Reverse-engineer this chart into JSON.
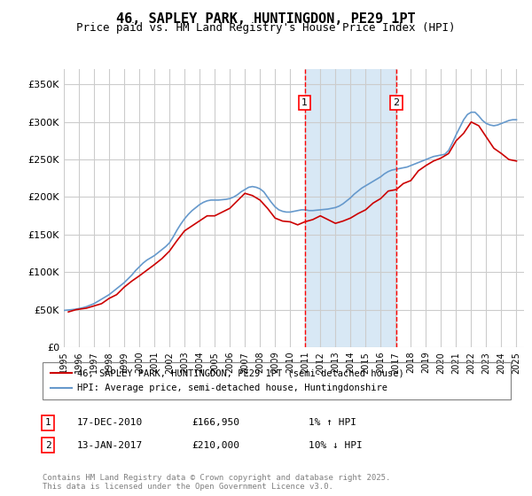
{
  "title": "46, SAPLEY PARK, HUNTINGDON, PE29 1PT",
  "subtitle": "Price paid vs. HM Land Registry's House Price Index (HPI)",
  "ylabel": "",
  "ylim": [
    0,
    370000
  ],
  "yticks": [
    0,
    50000,
    100000,
    150000,
    200000,
    250000,
    300000,
    350000
  ],
  "ytick_labels": [
    "£0",
    "£50K",
    "£100K",
    "£150K",
    "£200K",
    "£250K",
    "£300K",
    "£350K"
  ],
  "xlim_start": 1995.0,
  "xlim_end": 2025.5,
  "xticks": [
    1995,
    1996,
    1997,
    1998,
    1999,
    2000,
    2001,
    2002,
    2003,
    2004,
    2005,
    2006,
    2007,
    2008,
    2009,
    2010,
    2011,
    2012,
    2013,
    2014,
    2015,
    2016,
    2017,
    2018,
    2019,
    2020,
    2021,
    2022,
    2023,
    2024,
    2025
  ],
  "sale1_x": 2010.96,
  "sale1_y": 166950,
  "sale1_label": "1",
  "sale1_date": "17-DEC-2010",
  "sale1_price": "£166,950",
  "sale1_hpi": "1% ↑ HPI",
  "sale2_x": 2017.04,
  "sale2_y": 210000,
  "sale2_label": "2",
  "sale2_date": "13-JAN-2017",
  "sale2_price": "£210,000",
  "sale2_hpi": "10% ↓ HPI",
  "line_color_red": "#cc0000",
  "line_color_blue": "#6699cc",
  "shaded_color": "#d8e8f5",
  "grid_color": "#cccccc",
  "bg_color": "#ffffff",
  "legend1": "46, SAPLEY PARK, HUNTINGDON, PE29 1PT (semi-detached house)",
  "legend2": "HPI: Average price, semi-detached house, Huntingdonshire",
  "footer": "Contains HM Land Registry data © Crown copyright and database right 2025.\nThis data is licensed under the Open Government Licence v3.0.",
  "hpi_data_x": [
    1995.0,
    1995.25,
    1995.5,
    1995.75,
    1996.0,
    1996.25,
    1996.5,
    1996.75,
    1997.0,
    1997.25,
    1997.5,
    1997.75,
    1998.0,
    1998.25,
    1998.5,
    1998.75,
    1999.0,
    1999.25,
    1999.5,
    1999.75,
    2000.0,
    2000.25,
    2000.5,
    2000.75,
    2001.0,
    2001.25,
    2001.5,
    2001.75,
    2002.0,
    2002.25,
    2002.5,
    2002.75,
    2003.0,
    2003.25,
    2003.5,
    2003.75,
    2004.0,
    2004.25,
    2004.5,
    2004.75,
    2005.0,
    2005.25,
    2005.5,
    2005.75,
    2006.0,
    2006.25,
    2006.5,
    2006.75,
    2007.0,
    2007.25,
    2007.5,
    2007.75,
    2008.0,
    2008.25,
    2008.5,
    2008.75,
    2009.0,
    2009.25,
    2009.5,
    2009.75,
    2010.0,
    2010.25,
    2010.5,
    2010.75,
    2011.0,
    2011.25,
    2011.5,
    2011.75,
    2012.0,
    2012.25,
    2012.5,
    2012.75,
    2013.0,
    2013.25,
    2013.5,
    2013.75,
    2014.0,
    2014.25,
    2014.5,
    2014.75,
    2015.0,
    2015.25,
    2015.5,
    2015.75,
    2016.0,
    2016.25,
    2016.5,
    2016.75,
    2017.0,
    2017.25,
    2017.5,
    2017.75,
    2018.0,
    2018.25,
    2018.5,
    2018.75,
    2019.0,
    2019.25,
    2019.5,
    2019.75,
    2020.0,
    2020.25,
    2020.5,
    2020.75,
    2021.0,
    2021.25,
    2021.5,
    2021.75,
    2022.0,
    2022.25,
    2022.5,
    2022.75,
    2023.0,
    2023.25,
    2023.5,
    2023.75,
    2024.0,
    2024.25,
    2024.5,
    2024.75,
    2025.0
  ],
  "hpi_data_y": [
    49000,
    49500,
    50000,
    50500,
    51500,
    52500,
    54000,
    56000,
    58000,
    61000,
    64000,
    67000,
    70000,
    74000,
    78000,
    82000,
    86000,
    91000,
    96000,
    102000,
    107000,
    112000,
    116000,
    119000,
    122000,
    126000,
    130000,
    134000,
    139000,
    147000,
    156000,
    164000,
    171000,
    177000,
    182000,
    186000,
    190000,
    193000,
    195000,
    196000,
    196000,
    196000,
    196500,
    197000,
    198000,
    200000,
    203000,
    207000,
    210000,
    213000,
    214000,
    213000,
    211000,
    207000,
    200000,
    193000,
    187000,
    183000,
    181000,
    180000,
    180000,
    181000,
    182000,
    183000,
    183000,
    182000,
    182000,
    182500,
    183000,
    183500,
    184000,
    185000,
    186000,
    188000,
    191000,
    195000,
    199000,
    204000,
    208000,
    212000,
    215000,
    218000,
    221000,
    224000,
    227000,
    231000,
    234000,
    236000,
    237000,
    238000,
    239000,
    240000,
    242000,
    244000,
    246000,
    248000,
    250000,
    252000,
    254000,
    255000,
    256000,
    257000,
    262000,
    272000,
    283000,
    293000,
    303000,
    310000,
    313000,
    313000,
    308000,
    302000,
    298000,
    296000,
    295000,
    296000,
    298000,
    300000,
    302000,
    303000,
    303000
  ],
  "price_data_x": [
    1995.3,
    1995.8,
    1996.5,
    1997.5,
    1998.0,
    1998.5,
    1999.0,
    1999.5,
    2000.0,
    2001.0,
    2001.5,
    2002.0,
    2002.5,
    2003.0,
    2003.75,
    2004.5,
    2005.0,
    2006.0,
    2006.5,
    2007.0,
    2007.5,
    2008.0,
    2008.5,
    2009.0,
    2009.5,
    2010.0,
    2010.5,
    2010.96,
    2011.5,
    2012.0,
    2012.5,
    2013.0,
    2013.5,
    2014.0,
    2014.5,
    2015.0,
    2015.5,
    2016.0,
    2016.5,
    2017.04,
    2017.5,
    2018.0,
    2018.5,
    2019.0,
    2019.5,
    2020.0,
    2020.5,
    2021.0,
    2021.5,
    2022.0,
    2022.5,
    2023.0,
    2023.5,
    2024.0,
    2024.5,
    2025.0
  ],
  "price_data_y": [
    47000,
    50000,
    52000,
    58000,
    65000,
    70000,
    80000,
    88000,
    95000,
    110000,
    118000,
    128000,
    142000,
    155000,
    165000,
    175000,
    175000,
    185000,
    195000,
    205000,
    202000,
    196000,
    185000,
    172000,
    168000,
    167000,
    163000,
    166950,
    170000,
    175000,
    170000,
    165000,
    168000,
    172000,
    178000,
    183000,
    192000,
    198000,
    208000,
    210000,
    218000,
    222000,
    235000,
    242000,
    248000,
    252000,
    258000,
    275000,
    285000,
    300000,
    295000,
    280000,
    265000,
    258000,
    250000,
    248000
  ]
}
